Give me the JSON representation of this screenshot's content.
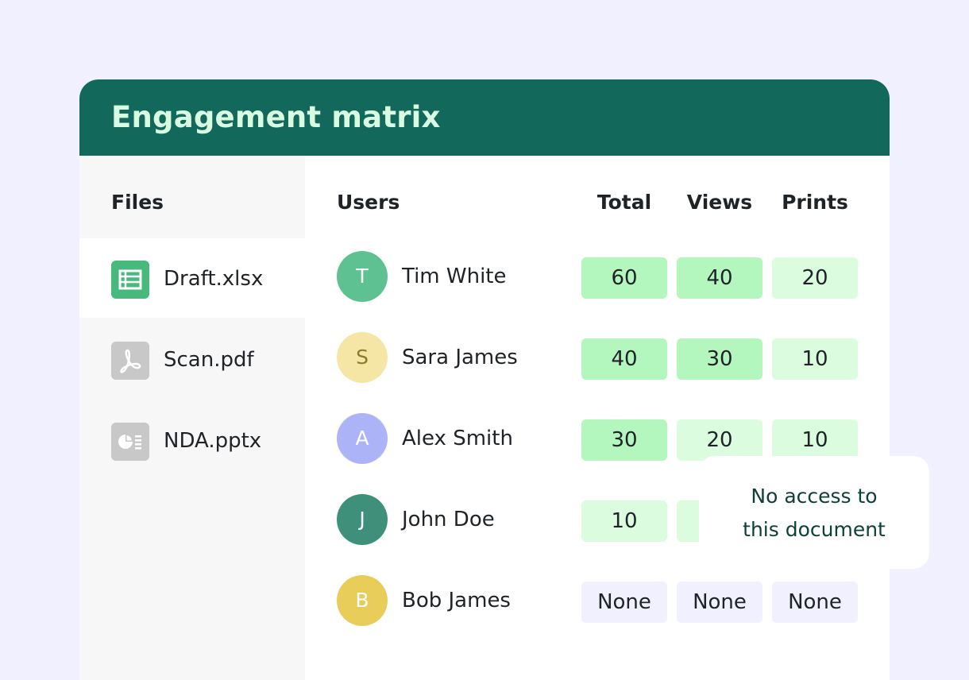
{
  "card": {
    "title": "Engagement matrix"
  },
  "columns": {
    "files": "Files",
    "users": "Users",
    "total": "Total",
    "views": "Views",
    "prints": "Prints"
  },
  "files": [
    {
      "name": "Draft.xlsx",
      "icon": "spreadsheet-icon",
      "active": true,
      "icon_color": "#47b97d"
    },
    {
      "name": "Scan.pdf",
      "icon": "pdf-icon",
      "active": false,
      "icon_color": "#c8c8c8"
    },
    {
      "name": "NDA.pptx",
      "icon": "presentation-icon",
      "active": false,
      "icon_color": "#c8c8c8"
    }
  ],
  "users": [
    {
      "initial": "T",
      "name": "Tim White",
      "avatar_color": "#5dc191",
      "initial_color": "#ffffff",
      "total": "60",
      "views": "40",
      "prints": "20",
      "total_color": "#b3f7bf",
      "views_color": "#b3f7bf",
      "prints_color": "#dbfcdf"
    },
    {
      "initial": "S",
      "name": "Sara James",
      "avatar_color": "#f5e6a6",
      "initial_color": "#8b7b2c",
      "total": "40",
      "views": "30",
      "prints": "10",
      "total_color": "#b3f7bf",
      "views_color": "#b3f7bf",
      "prints_color": "#dbfcdf"
    },
    {
      "initial": "A",
      "name": "Alex Smith",
      "avatar_color": "#adb3f7",
      "initial_color": "#ffffff",
      "total": "30",
      "views": "20",
      "prints": "10",
      "total_color": "#b3f7bf",
      "views_color": "#dbfcdf",
      "prints_color": "#dbfcdf"
    },
    {
      "initial": "J",
      "name": "John Doe",
      "avatar_color": "#3e907a",
      "initial_color": "#ffffff",
      "total": "10",
      "views": "",
      "prints": "",
      "total_color": "#dbfcdf",
      "views_color": "#dbfcdf",
      "prints_color": "#dbfcdf"
    },
    {
      "initial": "B",
      "name": "Bob James",
      "avatar_color": "#e8cd5a",
      "initial_color": "#ffffff",
      "total": "None",
      "views": "None",
      "prints": "None",
      "total_color": "#f0f0fe",
      "views_color": "#f0f0fe",
      "prints_color": "#f0f0fe"
    }
  ],
  "tooltip": {
    "line1": "No access to",
    "line2": "this document"
  },
  "colors": {
    "header": "#12695b",
    "title": "#d8fbe1",
    "background": "#f0f0fe"
  }
}
